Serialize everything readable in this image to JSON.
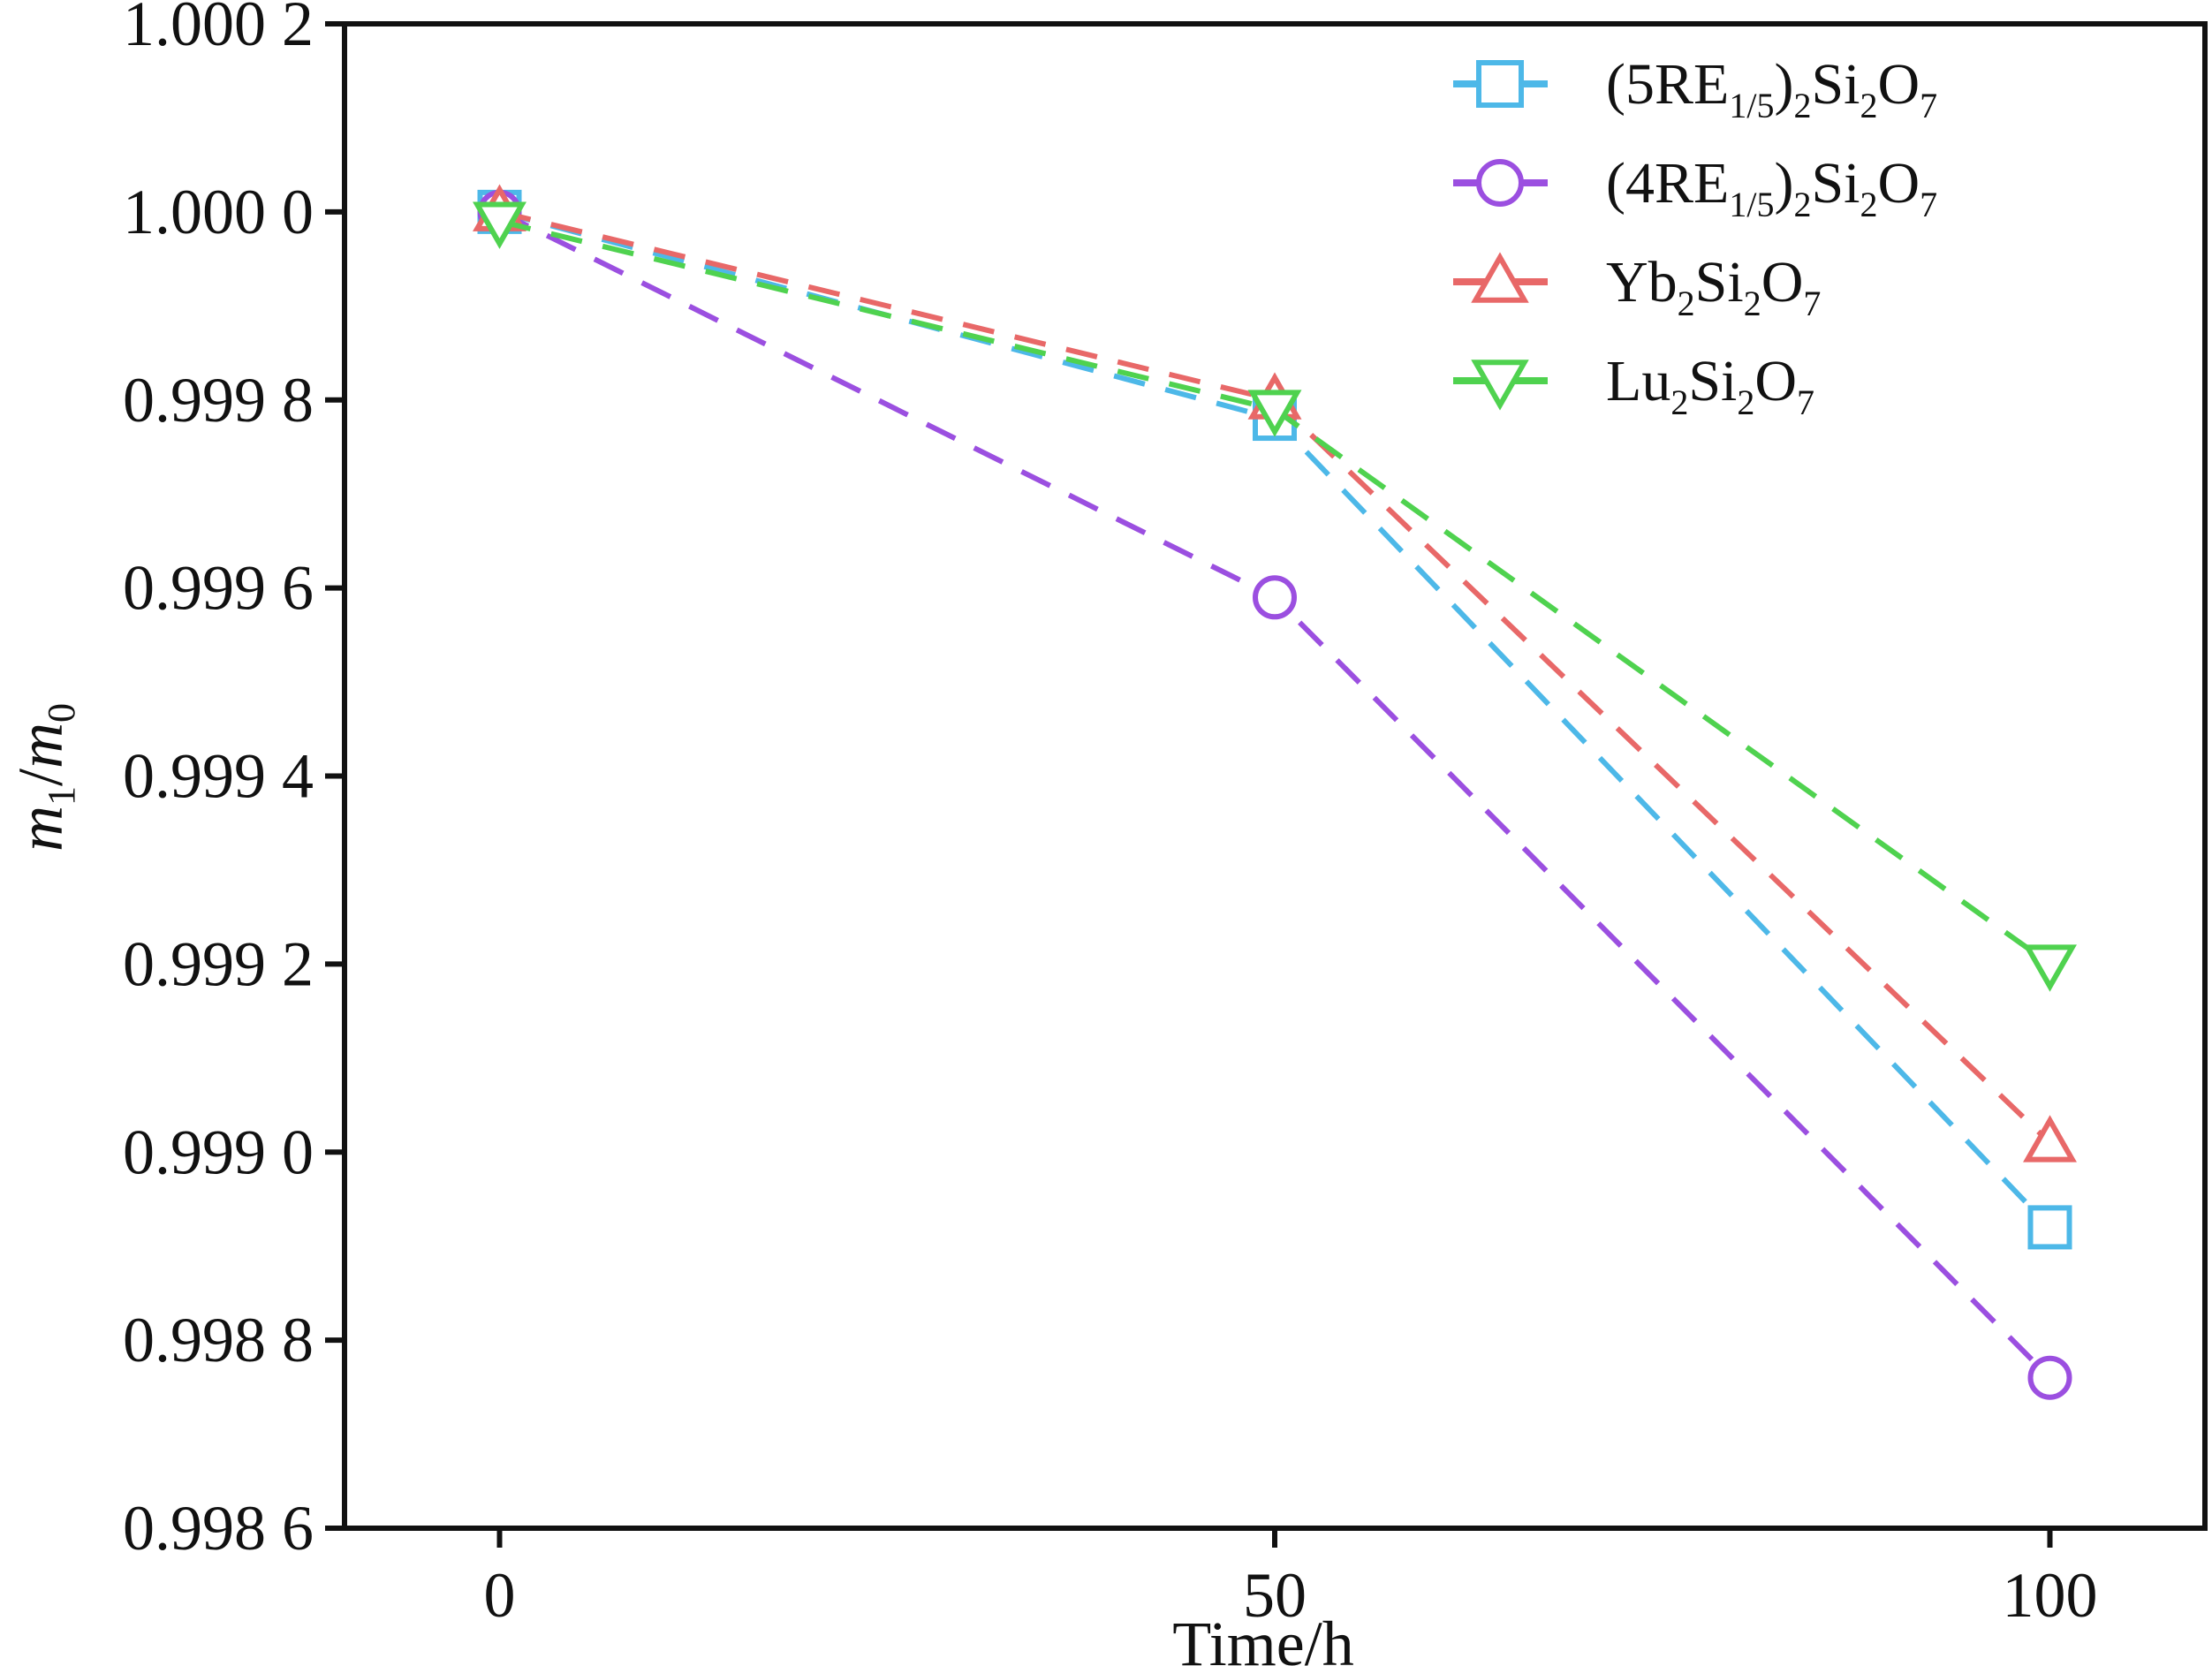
{
  "chart_data": {
    "type": "line",
    "xlabel": "Time/h",
    "ylabel": {
      "main_1": "m",
      "sub_1": "1",
      "sep": "/",
      "main_2": "m",
      "sub_2": "0"
    },
    "xlim": [
      -10,
      110
    ],
    "ylim": [
      0.9986,
      1.0002
    ],
    "x_ticks": [
      0,
      50,
      100
    ],
    "x_tick_labels": [
      "0",
      "50",
      "100"
    ],
    "y_ticks": [
      0.9986,
      0.9988,
      0.999,
      0.9992,
      0.9994,
      0.9996,
      0.9998,
      1.0,
      1.0002
    ],
    "y_tick_labels": [
      "0.998 6",
      "0.998 8",
      "0.999 0",
      "0.999 2",
      "0.999 4",
      "0.999 6",
      "0.999 8",
      "1.000 0",
      "1.000 2"
    ],
    "grid": false,
    "legend_position": "top-right",
    "x": [
      0,
      50,
      100
    ],
    "series": [
      {
        "name": "(5RE1/5)2Si2O7",
        "name_parts": [
          [
            "(5RE",
            "n"
          ],
          [
            "1/5",
            "s"
          ],
          [
            ")",
            "n"
          ],
          [
            "2",
            "s"
          ],
          [
            "Si",
            "n"
          ],
          [
            "2",
            "s"
          ],
          [
            "O",
            "n"
          ],
          [
            "7",
            "s"
          ]
        ],
        "marker": "square",
        "color": "#4db8e8",
        "values": [
          1.0,
          0.99978,
          0.99892
        ]
      },
      {
        "name": "(4RE1/5)2Si2O7",
        "name_parts": [
          [
            "(4RE",
            "n"
          ],
          [
            "1/5",
            "s"
          ],
          [
            ")",
            "n"
          ],
          [
            "2",
            "s"
          ],
          [
            "Si",
            "n"
          ],
          [
            "2",
            "s"
          ],
          [
            "O",
            "n"
          ],
          [
            "7",
            "s"
          ]
        ],
        "marker": "circle",
        "color": "#9b4fe0",
        "values": [
          1.0,
          0.99959,
          0.99876
        ]
      },
      {
        "name": "Yb2Si2O7",
        "name_parts": [
          [
            "Yb",
            "n"
          ],
          [
            "2",
            "s"
          ],
          [
            "Si",
            "n"
          ],
          [
            "2",
            "s"
          ],
          [
            "O",
            "n"
          ],
          [
            "7",
            "s"
          ]
        ],
        "marker": "triangle-up",
        "color": "#e86868",
        "values": [
          1.0,
          0.9998,
          0.99901
        ]
      },
      {
        "name": "Lu2Si2O7",
        "name_parts": [
          [
            "Lu",
            "n"
          ],
          [
            "2",
            "s"
          ],
          [
            "Si",
            "n"
          ],
          [
            "2",
            "s"
          ],
          [
            "O",
            "n"
          ],
          [
            "7",
            "s"
          ]
        ],
        "marker": "triangle-down",
        "color": "#4fd24f",
        "values": [
          0.99999,
          0.99979,
          0.9992
        ]
      }
    ]
  }
}
